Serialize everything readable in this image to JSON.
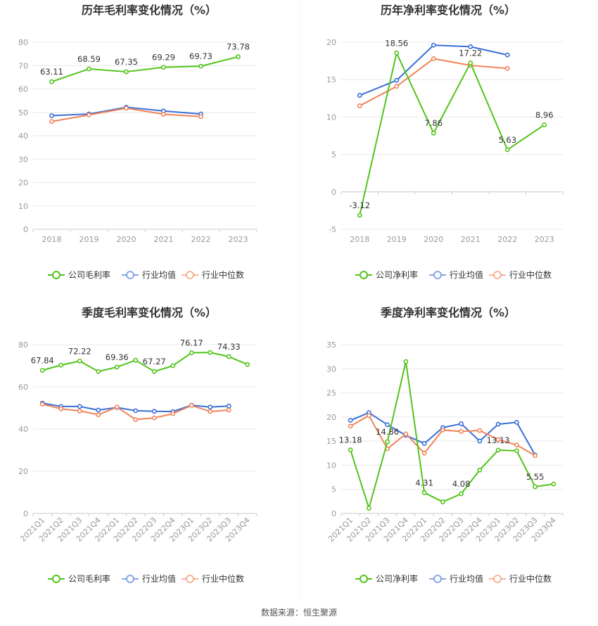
{
  "source_text": "数据来源：恒生聚源",
  "colors": {
    "company": "#52c41a",
    "avg": "#3b6fd8",
    "median": "#f0845a",
    "grid": "#e8e8e8",
    "axis": "#cccccc"
  },
  "chart_data": [
    {
      "type": "line",
      "title": "历年毛利率变化情况（%）",
      "categories": [
        "2018",
        "2019",
        "2020",
        "2021",
        "2022",
        "2023"
      ],
      "ylim": [
        0,
        80
      ],
      "yticks": [
        0,
        10,
        20,
        30,
        40,
        50,
        60,
        70,
        80
      ],
      "series": [
        {
          "name": "公司毛利率",
          "key": "company",
          "values": [
            63.11,
            68.59,
            67.35,
            69.29,
            69.73,
            73.78
          ]
        },
        {
          "name": "行业均值",
          "key": "avg",
          "values": [
            48.6,
            49.3,
            52.2,
            50.6,
            49.3,
            null
          ]
        },
        {
          "name": "行业中位数",
          "key": "median",
          "values": [
            46.1,
            48.9,
            51.8,
            49.2,
            48.2,
            null
          ]
        }
      ],
      "labels": [
        {
          "index": 0,
          "text": "63.11"
        },
        {
          "index": 1,
          "text": "68.59"
        },
        {
          "index": 2,
          "text": "67.35"
        },
        {
          "index": 3,
          "text": "69.29"
        },
        {
          "index": 4,
          "text": "69.73"
        },
        {
          "index": 5,
          "text": "73.78"
        }
      ]
    },
    {
      "type": "line",
      "title": "历年净利率变化情况（%）",
      "categories": [
        "2018",
        "2019",
        "2020",
        "2021",
        "2022",
        "2023"
      ],
      "ylim": [
        -5,
        20
      ],
      "yticks": [
        -5,
        0,
        5,
        10,
        15,
        20
      ],
      "series": [
        {
          "name": "公司净利率",
          "key": "company",
          "values": [
            -3.12,
            18.56,
            7.86,
            17.22,
            5.63,
            8.96
          ]
        },
        {
          "name": "行业均值",
          "key": "avg",
          "values": [
            12.9,
            14.9,
            19.6,
            19.4,
            18.3,
            null
          ]
        },
        {
          "name": "行业中位数",
          "key": "median",
          "values": [
            11.5,
            14.1,
            17.8,
            16.9,
            16.5,
            null
          ]
        }
      ],
      "labels": [
        {
          "index": 0,
          "text": "-3.12",
          "pos": "below"
        },
        {
          "index": 1,
          "text": "18.56"
        },
        {
          "index": 2,
          "text": "7.86"
        },
        {
          "index": 3,
          "text": "17.22"
        },
        {
          "index": 4,
          "text": "5.63"
        },
        {
          "index": 5,
          "text": "8.96"
        }
      ]
    },
    {
      "type": "line",
      "title": "季度毛利率变化情况（%）",
      "categories": [
        "2021Q1",
        "2021Q2",
        "2021Q3",
        "2021Q4",
        "2022Q1",
        "2022Q2",
        "2022Q3",
        "2022Q4",
        "2023Q1",
        "2023Q2",
        "2023Q3",
        "2023Q4"
      ],
      "ylim": [
        0,
        80
      ],
      "yticks": [
        0,
        20,
        40,
        60,
        80
      ],
      "series": [
        {
          "name": "公司毛利率",
          "key": "company",
          "values": [
            67.84,
            70.3,
            72.22,
            67.3,
            69.36,
            72.6,
            67.27,
            70.0,
            76.17,
            76.3,
            74.33,
            70.6
          ]
        },
        {
          "name": "行业均值",
          "key": "avg",
          "values": [
            52.3,
            50.7,
            50.7,
            49.0,
            50.2,
            48.7,
            48.4,
            48.3,
            51.3,
            50.4,
            50.9,
            null
          ]
        },
        {
          "name": "行业中位数",
          "key": "median",
          "values": [
            51.8,
            49.6,
            48.6,
            46.8,
            50.4,
            44.5,
            45.3,
            47.3,
            51.2,
            48.3,
            49.0,
            null
          ]
        }
      ],
      "labels": [
        {
          "index": 0,
          "text": "67.84"
        },
        {
          "index": 2,
          "text": "72.22"
        },
        {
          "index": 4,
          "text": "69.36"
        },
        {
          "index": 6,
          "text": "67.27"
        },
        {
          "index": 8,
          "text": "76.17"
        },
        {
          "index": 10,
          "text": "74.33"
        }
      ]
    },
    {
      "type": "line",
      "title": "季度净利率变化情况（%）",
      "categories": [
        "2021Q1",
        "2021Q2",
        "2021Q3",
        "2021Q4",
        "2022Q1",
        "2022Q2",
        "2022Q3",
        "2022Q4",
        "2023Q1",
        "2023Q2",
        "2023Q3",
        "2023Q4"
      ],
      "ylim": [
        0,
        35
      ],
      "yticks": [
        0,
        5,
        10,
        15,
        20,
        25,
        30,
        35
      ],
      "series": [
        {
          "name": "公司净利率",
          "key": "company",
          "values": [
            13.18,
            1.1,
            14.86,
            31.5,
            4.31,
            2.4,
            4.08,
            9.0,
            13.13,
            13.0,
            5.55,
            6.1
          ]
        },
        {
          "name": "行业均值",
          "key": "avg",
          "values": [
            19.3,
            20.9,
            18.4,
            16.2,
            14.5,
            17.8,
            18.6,
            15.0,
            18.5,
            18.9,
            12.1,
            null
          ]
        },
        {
          "name": "行业中位数",
          "key": "median",
          "values": [
            18.1,
            20.3,
            13.4,
            16.5,
            12.5,
            17.3,
            17.0,
            17.2,
            15.3,
            14.2,
            12.0,
            null
          ]
        }
      ],
      "labels": [
        {
          "index": 0,
          "text": "13.18"
        },
        {
          "index": 2,
          "text": "14.86"
        },
        {
          "index": 4,
          "text": "4.31"
        },
        {
          "index": 6,
          "text": "4.08"
        },
        {
          "index": 8,
          "text": "13.13"
        },
        {
          "index": 10,
          "text": "5.55"
        }
      ]
    }
  ]
}
